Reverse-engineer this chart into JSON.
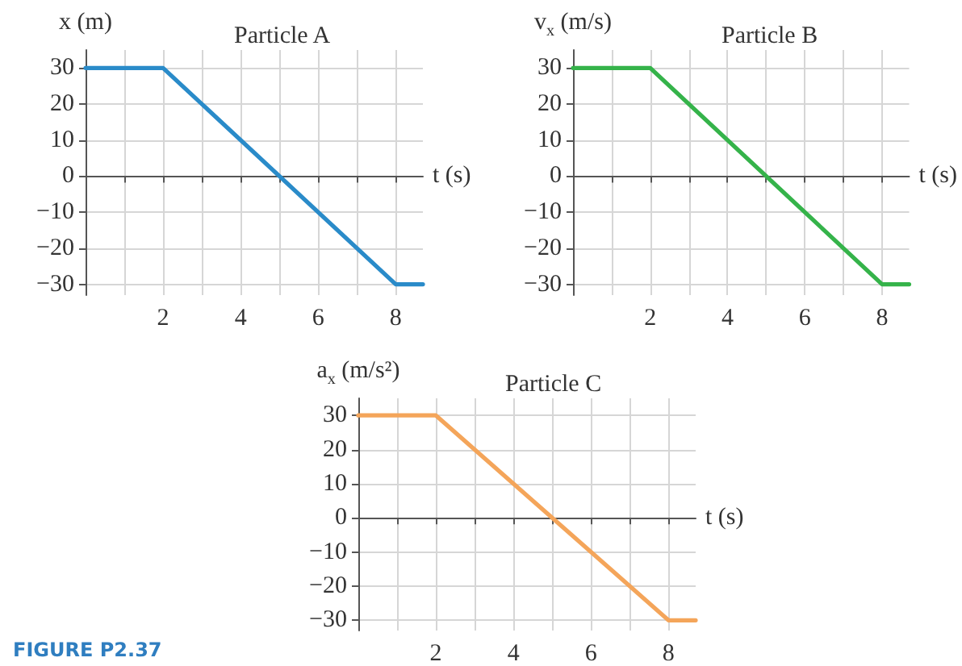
{
  "chart_data": [
    {
      "type": "line",
      "title": "Particle A",
      "xlabel": "t (s)",
      "ylabel": "x (m)",
      "x": [
        0,
        2,
        8,
        8.7
      ],
      "values": [
        30,
        30,
        -30,
        -30
      ],
      "color": "#2a8bc9",
      "xlim": [
        0,
        8.7
      ],
      "ylim": [
        -33,
        35
      ],
      "xticks": [
        {
          "value": 1,
          "label": null
        },
        2,
        {
          "value": 3,
          "label": null
        },
        4,
        {
          "value": 5,
          "label": null
        },
        6,
        {
          "value": 7,
          "label": null
        },
        8
      ],
      "yticks": [
        {
          "value": -30,
          "label": "−30"
        },
        {
          "value": -20,
          "label": "−20"
        },
        {
          "value": -10,
          "label": "−10"
        },
        0,
        10,
        20,
        30
      ],
      "grid": true
    },
    {
      "type": "line",
      "title": "Particle B",
      "xlabel": "t (s)",
      "ylabel": "v$_{x}$ (m/s)",
      "x": [
        0,
        2,
        8,
        8.7
      ],
      "values": [
        30,
        30,
        -30,
        -30
      ],
      "color": "#35b34a",
      "xlim": [
        0,
        8.7
      ],
      "ylim": [
        -33,
        35
      ],
      "xticks": [
        {
          "value": 1,
          "label": null
        },
        2,
        {
          "value": 3,
          "label": null
        },
        4,
        {
          "value": 5,
          "label": null
        },
        6,
        {
          "value": 7,
          "label": null
        },
        8
      ],
      "yticks": [
        {
          "value": -30,
          "label": "−30"
        },
        {
          "value": -20,
          "label": "−20"
        },
        {
          "value": -10,
          "label": "−10"
        },
        0,
        10,
        20,
        30
      ],
      "grid": true
    },
    {
      "type": "line",
      "title": "Particle C",
      "xlabel": "t (s)",
      "ylabel": "a$_{x}$ (m/s²)",
      "x": [
        0,
        2,
        8,
        8.7
      ],
      "values": [
        30,
        30,
        -30,
        -30
      ],
      "color": "#f4a55a",
      "xlim": [
        0,
        8.7
      ],
      "ylim": [
        -33,
        35
      ],
      "xticks": [
        {
          "value": 1,
          "label": null
        },
        2,
        {
          "value": 3,
          "label": null
        },
        4,
        {
          "value": 5,
          "label": null
        },
        6,
        {
          "value": 7,
          "label": null
        },
        8
      ],
      "yticks": [
        {
          "value": -30,
          "label": "−30"
        },
        {
          "value": -20,
          "label": "−20"
        },
        {
          "value": -10,
          "label": "−10"
        },
        0,
        10,
        20,
        30
      ],
      "grid": true,
      "annotations": [
        "FIGURE P2.37"
      ]
    }
  ]
}
